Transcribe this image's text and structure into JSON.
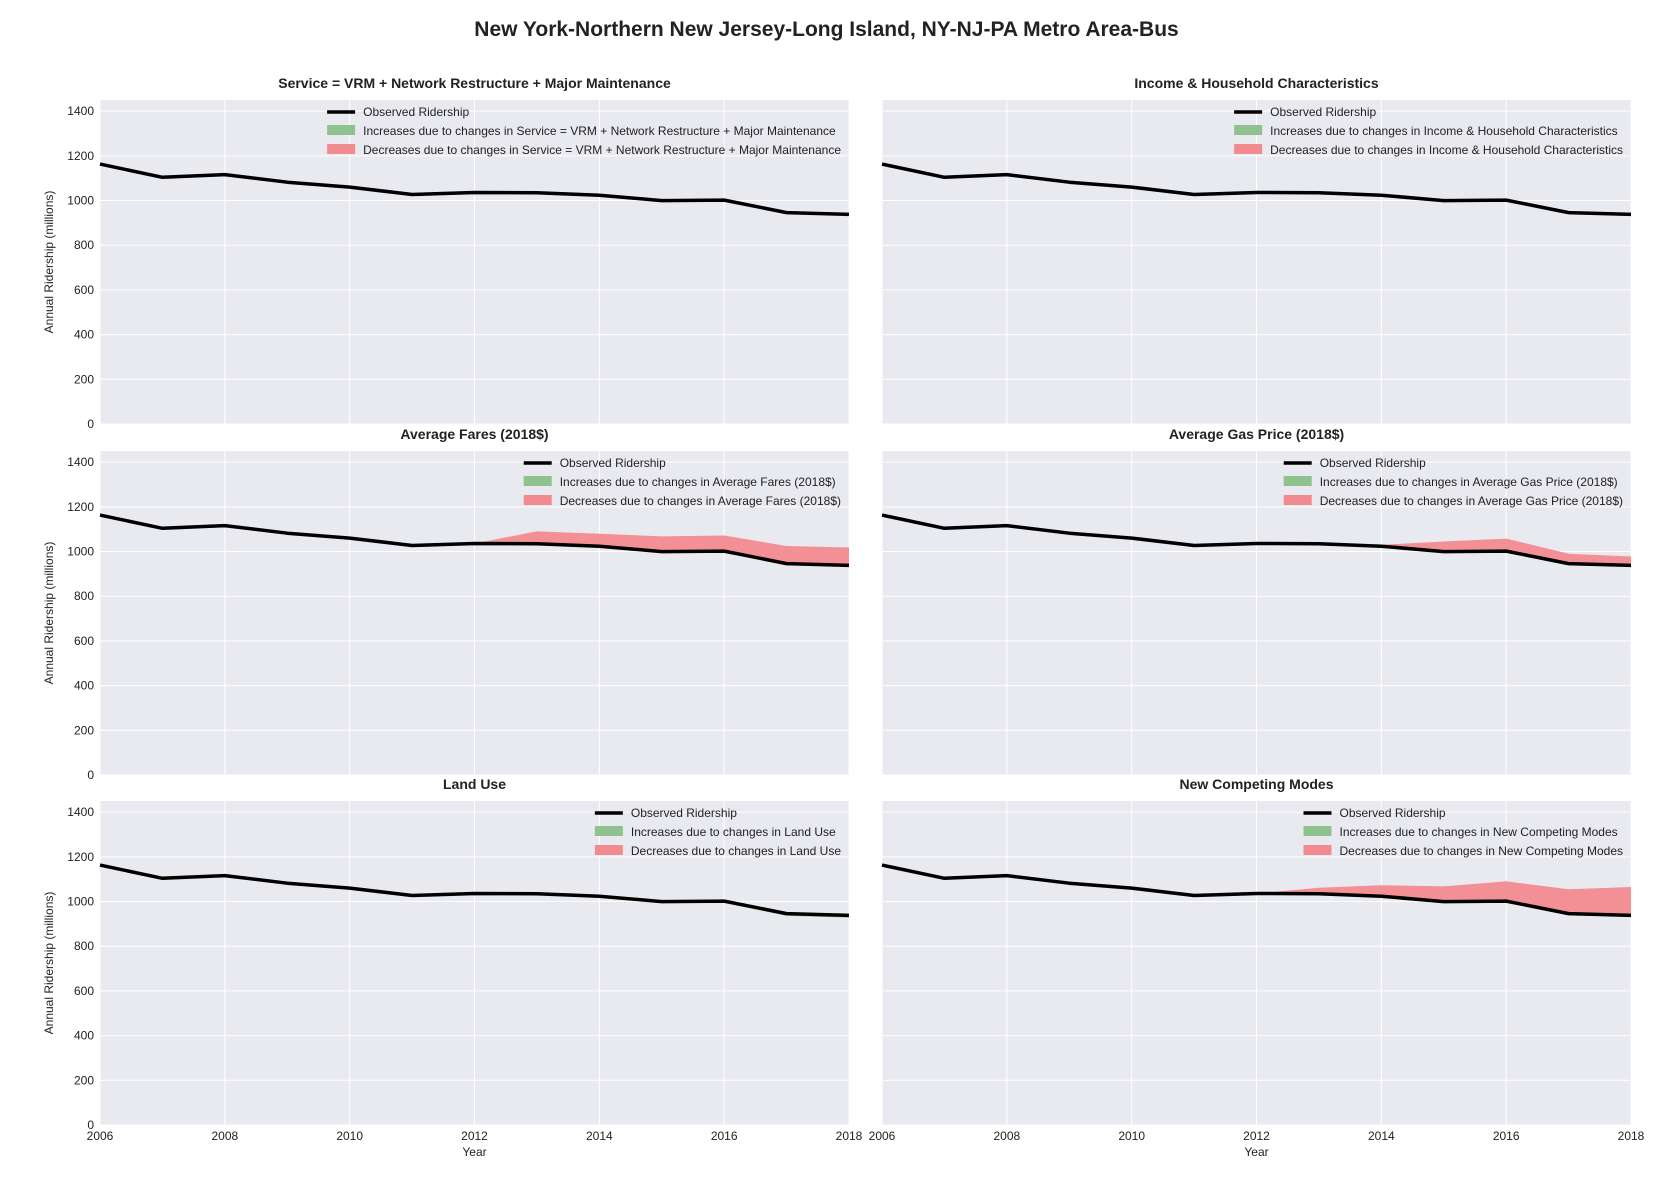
{
  "figure": {
    "title": "New York-Northern New Jersey-Long Island, NY-NJ-PA Metro Area-Bus"
  },
  "colors": {
    "plot_bg": "#e9e9f0",
    "grid": "#ffffff",
    "observed": "#000000",
    "increase": "#8fc28f",
    "decrease": "#f28b8f"
  },
  "chart_data": [
    {
      "type": "line",
      "title": "Service = VRM + Network Restructure + Major Maintenance",
      "ylabel": "Annual Ridership (millions)",
      "xlabel": "",
      "xlim": [
        2006,
        2018
      ],
      "ylim": [
        0,
        1450
      ],
      "xticks": [
        2006,
        2008,
        2010,
        2012,
        2014,
        2016,
        2018
      ],
      "yticks": [
        0,
        200,
        400,
        600,
        800,
        1000,
        1200,
        1400
      ],
      "show_yticks": true,
      "show_xticks": false,
      "grid": true,
      "legend": "top-right",
      "x": [
        2006,
        2007,
        2008,
        2009,
        2010,
        2011,
        2012,
        2013,
        2014,
        2015,
        2016,
        2017,
        2018
      ],
      "series": [
        {
          "name": "Observed Ridership",
          "kind": "line",
          "values": [
            1163,
            1104,
            1116,
            1082,
            1060,
            1027,
            1036,
            1035,
            1024,
            1000,
            1002,
            946,
            938
          ]
        },
        {
          "name": "Increases due to changes in Service = VRM + Network Restructure + Major Maintenance",
          "kind": "band",
          "color": "increase",
          "values": [
            1163,
            1104,
            1116,
            1082,
            1060,
            1027,
            1036,
            1035,
            1024,
            1000,
            1002,
            946,
            938
          ]
        },
        {
          "name": "Decreases due to changes in Service = VRM + Network Restructure + Major Maintenance",
          "kind": "band",
          "color": "decrease",
          "values": [
            1163,
            1104,
            1116,
            1082,
            1060,
            1027,
            1036,
            1035,
            1024,
            1000,
            1002,
            946,
            938
          ]
        }
      ]
    },
    {
      "type": "line",
      "title": "Income & Household Characteristics",
      "ylabel": "",
      "xlabel": "",
      "xlim": [
        2006,
        2018
      ],
      "ylim": [
        0,
        1450
      ],
      "xticks": [
        2006,
        2008,
        2010,
        2012,
        2014,
        2016,
        2018
      ],
      "yticks": [
        0,
        200,
        400,
        600,
        800,
        1000,
        1200,
        1400
      ],
      "show_yticks": false,
      "show_xticks": false,
      "grid": true,
      "legend": "top-right",
      "x": [
        2006,
        2007,
        2008,
        2009,
        2010,
        2011,
        2012,
        2013,
        2014,
        2015,
        2016,
        2017,
        2018
      ],
      "series": [
        {
          "name": "Observed Ridership",
          "kind": "line",
          "values": [
            1163,
            1104,
            1116,
            1082,
            1060,
            1027,
            1036,
            1035,
            1024,
            1000,
            1002,
            946,
            938
          ]
        },
        {
          "name": "Increases due to changes in Income & Household Characteristics",
          "kind": "band",
          "color": "increase",
          "values": [
            1163,
            1104,
            1116,
            1082,
            1060,
            1027,
            1036,
            1035,
            1024,
            1000,
            1002,
            946,
            938
          ]
        },
        {
          "name": "Decreases due to changes in Income & Household Characteristics",
          "kind": "band",
          "color": "decrease",
          "values": [
            1163,
            1104,
            1116,
            1082,
            1060,
            1027,
            1036,
            1035,
            1024,
            1000,
            1002,
            946,
            938
          ]
        }
      ]
    },
    {
      "type": "line",
      "title": "Average Fares (2018$)",
      "ylabel": "Annual Ridership (millions)",
      "xlabel": "",
      "xlim": [
        2006,
        2018
      ],
      "ylim": [
        0,
        1450
      ],
      "xticks": [
        2006,
        2008,
        2010,
        2012,
        2014,
        2016,
        2018
      ],
      "yticks": [
        0,
        200,
        400,
        600,
        800,
        1000,
        1200,
        1400
      ],
      "show_yticks": true,
      "show_xticks": false,
      "grid": true,
      "legend": "top-right",
      "x": [
        2006,
        2007,
        2008,
        2009,
        2010,
        2011,
        2012,
        2013,
        2014,
        2015,
        2016,
        2017,
        2018
      ],
      "series": [
        {
          "name": "Observed Ridership",
          "kind": "line",
          "values": [
            1163,
            1104,
            1116,
            1082,
            1060,
            1027,
            1036,
            1035,
            1024,
            1000,
            1002,
            946,
            938
          ]
        },
        {
          "name": "Increases due to changes in Average Fares (2018$)",
          "kind": "band",
          "color": "increase",
          "values": [
            1163,
            1104,
            1116,
            1082,
            1060,
            1027,
            1036,
            1035,
            1024,
            1000,
            1002,
            946,
            938
          ]
        },
        {
          "name": "Decreases due to changes in Average Fares (2018$)",
          "kind": "band",
          "color": "decrease",
          "values": [
            1163,
            1104,
            1116,
            1082,
            1060,
            1027,
            1036,
            1090,
            1080,
            1068,
            1072,
            1025,
            1018
          ]
        }
      ]
    },
    {
      "type": "line",
      "title": "Average Gas Price (2018$)",
      "ylabel": "",
      "xlabel": "",
      "xlim": [
        2006,
        2018
      ],
      "ylim": [
        0,
        1450
      ],
      "xticks": [
        2006,
        2008,
        2010,
        2012,
        2014,
        2016,
        2018
      ],
      "yticks": [
        0,
        200,
        400,
        600,
        800,
        1000,
        1200,
        1400
      ],
      "show_yticks": false,
      "show_xticks": false,
      "grid": true,
      "legend": "top-right",
      "x": [
        2006,
        2007,
        2008,
        2009,
        2010,
        2011,
        2012,
        2013,
        2014,
        2015,
        2016,
        2017,
        2018
      ],
      "series": [
        {
          "name": "Observed Ridership",
          "kind": "line",
          "values": [
            1163,
            1104,
            1116,
            1082,
            1060,
            1027,
            1036,
            1035,
            1024,
            1000,
            1002,
            946,
            938
          ]
        },
        {
          "name": "Increases due to changes in Average Gas Price (2018$)",
          "kind": "band",
          "color": "increase",
          "values": [
            1163,
            1104,
            1116,
            1082,
            1060,
            1027,
            1036,
            1035,
            1024,
            1000,
            1002,
            946,
            938
          ]
        },
        {
          "name": "Decreases due to changes in Average Gas Price (2018$)",
          "kind": "band",
          "color": "decrease",
          "values": [
            1163,
            1104,
            1116,
            1082,
            1060,
            1027,
            1036,
            1035,
            1030,
            1045,
            1058,
            990,
            978
          ]
        }
      ]
    },
    {
      "type": "line",
      "title": "Land Use",
      "ylabel": "Annual Ridership (millions)",
      "xlabel": "Year",
      "xlim": [
        2006,
        2018
      ],
      "ylim": [
        0,
        1450
      ],
      "xticks": [
        2006,
        2008,
        2010,
        2012,
        2014,
        2016,
        2018
      ],
      "yticks": [
        0,
        200,
        400,
        600,
        800,
        1000,
        1200,
        1400
      ],
      "show_yticks": true,
      "show_xticks": true,
      "grid": true,
      "legend": "top-right",
      "x": [
        2006,
        2007,
        2008,
        2009,
        2010,
        2011,
        2012,
        2013,
        2014,
        2015,
        2016,
        2017,
        2018
      ],
      "series": [
        {
          "name": "Observed Ridership",
          "kind": "line",
          "values": [
            1163,
            1104,
            1116,
            1082,
            1060,
            1027,
            1036,
            1035,
            1024,
            1000,
            1002,
            946,
            938
          ]
        },
        {
          "name": "Increases due to changes in Land Use",
          "kind": "band",
          "color": "increase",
          "values": [
            1163,
            1104,
            1116,
            1082,
            1060,
            1027,
            1036,
            1033,
            1020,
            994,
            994,
            936,
            928
          ]
        },
        {
          "name": "Decreases due to changes in Land Use",
          "kind": "band",
          "color": "decrease",
          "values": [
            1163,
            1104,
            1116,
            1082,
            1060,
            1027,
            1036,
            1035,
            1024,
            1000,
            1002,
            946,
            938
          ]
        }
      ]
    },
    {
      "type": "line",
      "title": "New Competing Modes",
      "ylabel": "",
      "xlabel": "Year",
      "xlim": [
        2006,
        2018
      ],
      "ylim": [
        0,
        1450
      ],
      "xticks": [
        2006,
        2008,
        2010,
        2012,
        2014,
        2016,
        2018
      ],
      "yticks": [
        0,
        200,
        400,
        600,
        800,
        1000,
        1200,
        1400
      ],
      "show_yticks": false,
      "show_xticks": true,
      "grid": true,
      "legend": "top-right",
      "x": [
        2006,
        2007,
        2008,
        2009,
        2010,
        2011,
        2012,
        2013,
        2014,
        2015,
        2016,
        2017,
        2018
      ],
      "series": [
        {
          "name": "Observed Ridership",
          "kind": "line",
          "values": [
            1163,
            1104,
            1116,
            1082,
            1060,
            1027,
            1036,
            1035,
            1024,
            1000,
            1002,
            946,
            938
          ]
        },
        {
          "name": "Increases due to changes in New Competing Modes",
          "kind": "band",
          "color": "increase",
          "values": [
            1163,
            1104,
            1116,
            1082,
            1060,
            1027,
            1036,
            1035,
            1024,
            1000,
            1002,
            946,
            938
          ]
        },
        {
          "name": "Decreases due to changes in New Competing Modes",
          "kind": "band",
          "color": "decrease",
          "values": [
            1163,
            1104,
            1116,
            1082,
            1060,
            1027,
            1036,
            1062,
            1073,
            1068,
            1090,
            1055,
            1065
          ]
        }
      ]
    }
  ]
}
